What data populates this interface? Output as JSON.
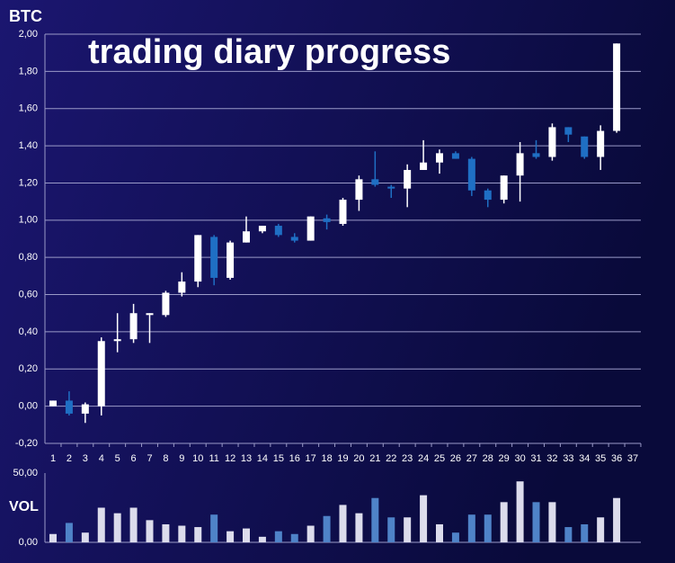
{
  "chart_data": [
    {
      "type": "candlestick",
      "title": "trading diary progress",
      "y_label": "BTC",
      "categories": [
        "1",
        "2",
        "3",
        "4",
        "5",
        "6",
        "7",
        "8",
        "9",
        "10",
        "11",
        "12",
        "13",
        "14",
        "15",
        "16",
        "17",
        "18",
        "19",
        "20",
        "21",
        "22",
        "23",
        "24",
        "25",
        "26",
        "27",
        "28",
        "29",
        "30",
        "31",
        "32",
        "33",
        "34",
        "35",
        "36",
        "37"
      ],
      "open": [
        0.0,
        0.03,
        -0.04,
        0.0,
        0.35,
        0.36,
        0.49,
        0.49,
        0.61,
        0.67,
        0.91,
        0.69,
        0.88,
        0.94,
        0.97,
        0.91,
        0.89,
        1.01,
        0.98,
        1.11,
        1.22,
        1.18,
        1.17,
        1.27,
        1.31,
        1.36,
        1.33,
        1.16,
        1.11,
        1.24,
        1.36,
        1.34,
        1.5,
        1.45,
        1.34,
        1.48,
        null
      ],
      "high": [
        0.03,
        0.08,
        0.02,
        0.37,
        0.5,
        0.55,
        0.5,
        0.62,
        0.72,
        0.92,
        0.92,
        0.89,
        1.02,
        0.97,
        0.98,
        0.93,
        1.02,
        1.03,
        1.12,
        1.24,
        1.37,
        1.19,
        1.3,
        1.43,
        1.38,
        1.37,
        1.34,
        1.17,
        1.24,
        1.42,
        1.43,
        1.52,
        1.5,
        1.45,
        1.51,
        1.95,
        null
      ],
      "low": [
        0.0,
        -0.05,
        -0.09,
        -0.05,
        0.29,
        0.34,
        0.34,
        0.48,
        0.59,
        0.64,
        0.65,
        0.68,
        0.88,
        0.93,
        0.91,
        0.88,
        0.89,
        0.95,
        0.97,
        1.05,
        1.18,
        1.12,
        1.07,
        1.27,
        1.25,
        1.33,
        1.13,
        1.07,
        1.09,
        1.1,
        1.33,
        1.32,
        1.42,
        1.33,
        1.27,
        1.47,
        null
      ],
      "close": [
        0.03,
        -0.04,
        0.01,
        0.35,
        0.36,
        0.5,
        0.5,
        0.61,
        0.67,
        0.92,
        0.69,
        0.88,
        0.94,
        0.97,
        0.92,
        0.89,
        1.02,
        0.99,
        1.11,
        1.22,
        1.19,
        1.17,
        1.27,
        1.31,
        1.36,
        1.33,
        1.16,
        1.11,
        1.24,
        1.36,
        1.34,
        1.5,
        1.46,
        1.34,
        1.48,
        1.95,
        null
      ],
      "up_color": "#ffffff",
      "down_color": "#1f6fc4",
      "ylim": [
        -0.2,
        2.0
      ],
      "yticks": [
        {
          "value": -0.2,
          "label": "-0,20"
        },
        {
          "value": 0,
          "label": "0,00"
        },
        {
          "value": 0.2,
          "label": "0,20"
        },
        {
          "value": 0.4,
          "label": "0,40"
        },
        {
          "value": 0.6,
          "label": "0,60"
        },
        {
          "value": 0.8,
          "label": "0,80"
        },
        {
          "value": 1.0,
          "label": "1,00"
        },
        {
          "value": 1.2,
          "label": "1,20"
        },
        {
          "value": 1.4,
          "label": "1,40"
        },
        {
          "value": 1.6,
          "label": "1,60"
        },
        {
          "value": 1.8,
          "label": "1,80"
        },
        {
          "value": 2.0,
          "label": "2,00"
        }
      ],
      "grid": true
    },
    {
      "type": "bar",
      "y_label": "VOL",
      "values": [
        6,
        14,
        7,
        25,
        21,
        25,
        16,
        13,
        12,
        11,
        20,
        8,
        10,
        4,
        8,
        6,
        12,
        19,
        27,
        21,
        32,
        18,
        18,
        34,
        13,
        7,
        20,
        20,
        29,
        44,
        29,
        29,
        11,
        13,
        18,
        32
      ],
      "up_color": "#dcdcec",
      "down_color": "#4f83c8",
      "ylim": [
        0,
        50
      ],
      "yticks": [
        {
          "value": 0,
          "label": "0,00"
        },
        {
          "value": 50,
          "label": "50,00"
        }
      ]
    }
  ]
}
